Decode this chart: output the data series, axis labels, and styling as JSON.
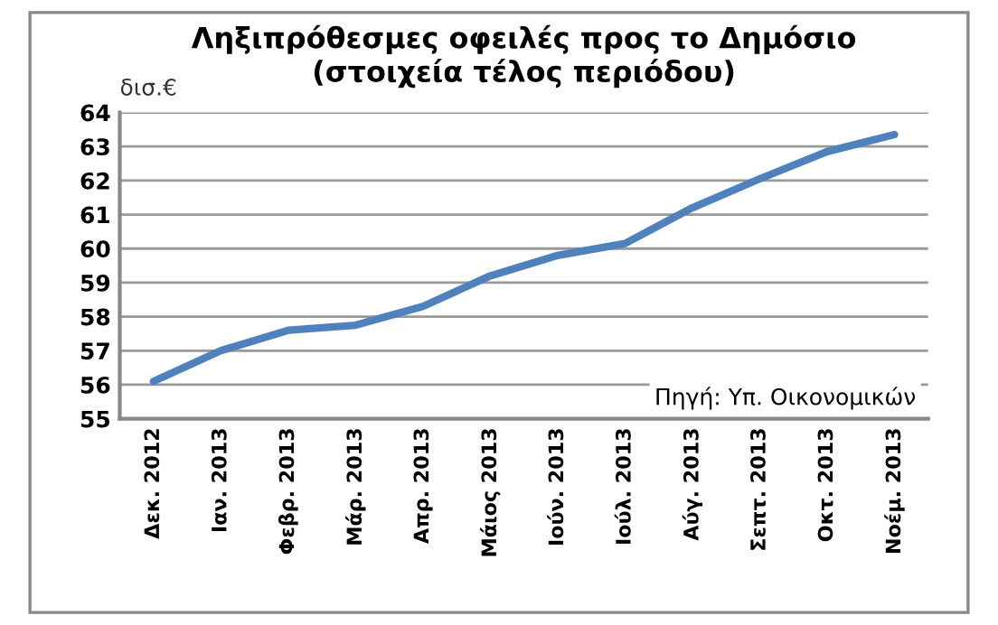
{
  "chart_data": {
    "type": "line",
    "title": "Ληξιπρόθεσμες οφειλές προς το Δημόσιο\n(στοιχεία τέλος περιόδου)",
    "ylabel": "δισ.€",
    "annotations": [
      "Πηγή: Υπ. Οικονομικών"
    ],
    "categories": [
      "Δεκ. 2012",
      "Ιαν. 2013",
      "Φεβρ. 2013",
      "Μάρ. 2013",
      "Απρ. 2013",
      "Μάιος 2013",
      "Ιούν. 2013",
      "Ιούλ. 2013",
      "Αύγ. 2013",
      "Σεπτ. 2013",
      "Οκτ. 2013",
      "Νοέμ. 2013"
    ],
    "series": [
      {
        "color": "#4f81bd",
        "values": [
          56.1,
          57.0,
          57.6,
          57.75,
          58.3,
          59.2,
          59.8,
          60.15,
          61.2,
          62.05,
          62.85,
          63.35
        ]
      }
    ],
    "ylim": [
      55,
      64
    ],
    "yticks": [
      55,
      56,
      57,
      58,
      59,
      60,
      61,
      62,
      63,
      64
    ],
    "grid": "y",
    "legend": false,
    "marker": "none",
    "line_style": "solid"
  }
}
